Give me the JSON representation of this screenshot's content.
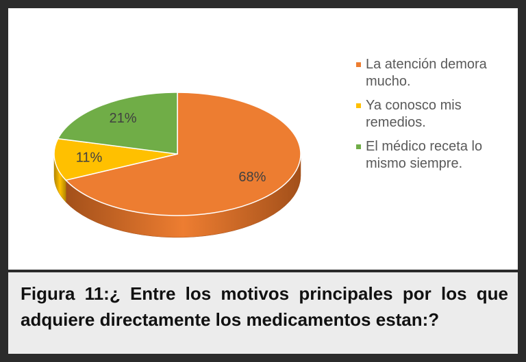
{
  "chart_data": {
    "type": "pie",
    "categories": [
      "La atención demora mucho.",
      "Ya conosco mis remedios.",
      "El médico receta lo mismo siempre."
    ],
    "values": [
      68,
      11,
      21
    ],
    "value_labels": [
      "68%",
      "11%",
      "21%"
    ],
    "colors": [
      "#ed7d31",
      "#ffc000",
      "#70ad47"
    ],
    "side_colors": [
      "#a3501a",
      "#b38600",
      "#4b7a2e"
    ],
    "legend": "right"
  },
  "caption": "Figura 11:¿ Entre los motivos principales por los que adquiere directamente los medicamentos estan:?"
}
